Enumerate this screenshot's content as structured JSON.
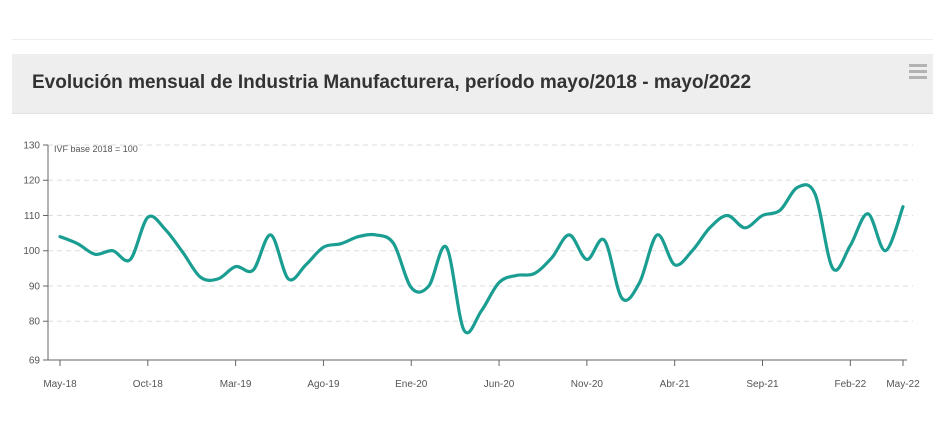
{
  "header": {
    "title": "Evolución mensual de Industria Manufacturera, período mayo/2018 - mayo/2022"
  },
  "colors": {
    "line": "#1b9e92",
    "grid": "#dddddd",
    "header_bg": "#eeeeee"
  },
  "icons": {
    "menu": "hamburger-menu-icon"
  },
  "chart_data": {
    "type": "line",
    "title": "Evolución mensual de Industria Manufacturera, período mayo/2018 - mayo/2022",
    "ylabel": "IVF base 2018 = 100",
    "xlabel": "",
    "ylim": [
      69,
      130
    ],
    "yticks": [
      69,
      80,
      90,
      100,
      110,
      120,
      130
    ],
    "grid": true,
    "legend": "none",
    "x": [
      "May-18",
      "Jun-18",
      "Jul-18",
      "Ago-18",
      "Sep-18",
      "Oct-18",
      "Nov-18",
      "Dic-18",
      "Ene-19",
      "Feb-19",
      "Mar-19",
      "Abr-19",
      "May-19",
      "Jun-19",
      "Jul-19",
      "Ago-19",
      "Sep-19",
      "Oct-19",
      "Nov-19",
      "Dic-19",
      "Ene-20",
      "Feb-20",
      "Mar-20",
      "Abr-20",
      "May-20",
      "Jun-20",
      "Jul-20",
      "Ago-20",
      "Sep-20",
      "Oct-20",
      "Nov-20",
      "Dic-20",
      "Ene-21",
      "Feb-21",
      "Mar-21",
      "Abr-21",
      "May-21",
      "Jun-21",
      "Jul-21",
      "Ago-21",
      "Sep-21",
      "Oct-21",
      "Nov-21",
      "Dic-21",
      "Ene-22",
      "Feb-22",
      "Mar-22",
      "Abr-22",
      "May-22"
    ],
    "xticks": [
      "May-18",
      "Oct-18",
      "Mar-19",
      "Ago-19",
      "Ene-20",
      "Jun-20",
      "Nov-20",
      "Abr-21",
      "Sep-21",
      "Feb-22",
      "May-22"
    ],
    "series": [
      {
        "values": [
          104,
          102,
          99,
          100,
          97.5,
          109.5,
          106,
          99.5,
          92.5,
          92,
          95.5,
          94.5,
          104.5,
          92,
          96,
          101,
          102,
          104,
          104.5,
          102,
          89.5,
          90,
          101,
          77.5,
          83,
          91,
          93,
          93.5,
          98,
          104.5,
          97.5,
          103,
          86.5,
          91,
          104.5,
          96,
          100,
          106.5,
          110,
          106.5,
          110,
          111.5,
          118,
          116,
          95,
          101.5,
          110.5,
          100,
          112.5
        ]
      }
    ]
  }
}
